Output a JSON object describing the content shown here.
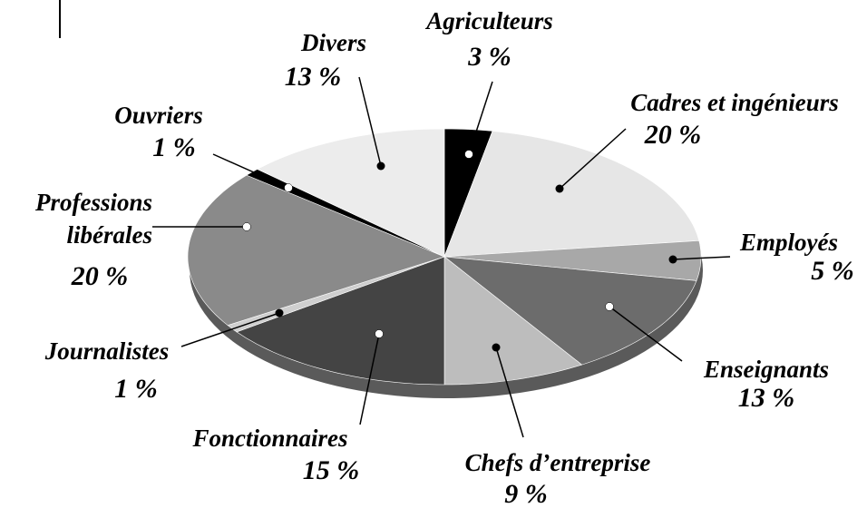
{
  "chart_data": {
    "type": "pie",
    "categories": [
      "Agriculteurs",
      "Cadres et ingénieurs",
      "Employés",
      "Enseignants",
      "Chefs d’entreprise",
      "Fonctionnaires",
      "Journalistes",
      "Professions libérales",
      "Ouvriers",
      "Divers"
    ],
    "values": [
      3,
      20,
      5,
      13,
      9,
      15,
      1,
      20,
      1,
      13
    ],
    "value_labels": [
      "3 %",
      "20 %",
      "5 %",
      "13 %",
      "9 %",
      "15 %",
      "1 %",
      "20 %",
      "1 %",
      "13 %"
    ],
    "colors": [
      "#000000",
      "#e6e6e6",
      "#a8a8a8",
      "#6c6c6c",
      "#bdbdbd",
      "#444444",
      "#cfcfcf",
      "#8a8a8a",
      "#000000",
      "#ececec"
    ]
  }
}
